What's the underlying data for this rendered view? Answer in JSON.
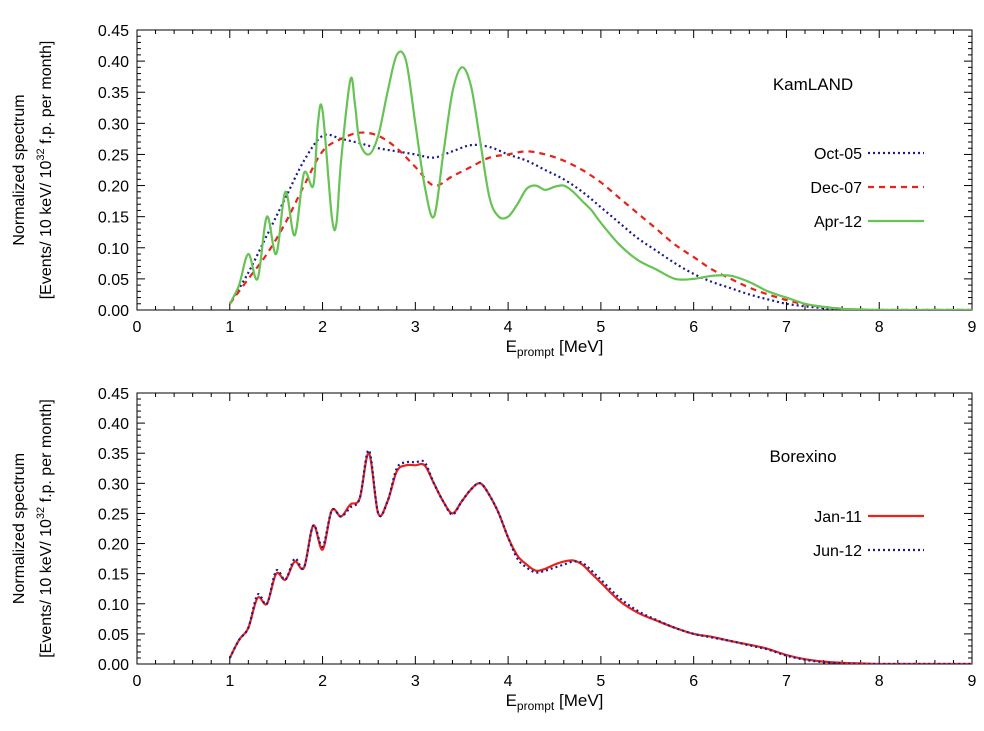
{
  "colors": {
    "navy": "#1a1a8c",
    "red": "#e8231b",
    "green": "#66c354",
    "axis": "#000000"
  },
  "chart_data": [
    {
      "type": "line",
      "annotation": "KamLAND",
      "xlabel_main": "E",
      "xlabel_sub": "prompt",
      "xlabel_unit": " [MeV]",
      "ylabel_line1": "Normalized spectrum",
      "ylabel_line2_pre": "[Events/ 10 keV/ 10",
      "ylabel_line2_sup": "32",
      "ylabel_line2_post": " f.p. per month]",
      "xlim": [
        0,
        9
      ],
      "ylim": [
        0,
        0.45
      ],
      "xticks": [
        "0",
        "1",
        "2",
        "3",
        "4",
        "5",
        "6",
        "7",
        "8",
        "9"
      ],
      "yticks": [
        "0.00",
        "0.05",
        "0.10",
        "0.15",
        "0.20",
        "0.25",
        "0.30",
        "0.35",
        "0.40",
        "0.45"
      ],
      "grid": false,
      "legend_position": "right",
      "series": [
        {
          "name": "Oct-05",
          "color": "#1a1a8c",
          "dash": "dotted",
          "x": [
            1.0,
            1.2,
            1.4,
            1.6,
            1.8,
            2.0,
            2.2,
            2.4,
            2.6,
            2.8,
            3.0,
            3.2,
            3.4,
            3.6,
            3.8,
            4.0,
            4.2,
            4.4,
            4.6,
            4.8,
            5.0,
            5.2,
            5.4,
            5.6,
            5.8,
            6.0,
            6.2,
            6.4,
            6.6,
            6.8,
            7.0,
            7.2,
            7.4,
            7.6,
            7.8,
            8.0,
            8.5,
            9.0
          ],
          "y": [
            0.01,
            0.06,
            0.12,
            0.18,
            0.24,
            0.28,
            0.275,
            0.268,
            0.26,
            0.255,
            0.25,
            0.245,
            0.255,
            0.265,
            0.262,
            0.25,
            0.24,
            0.225,
            0.21,
            0.19,
            0.165,
            0.14,
            0.115,
            0.095,
            0.075,
            0.058,
            0.045,
            0.035,
            0.025,
            0.017,
            0.01,
            0.006,
            0.003,
            0.001,
            0.0,
            0.0,
            0.0,
            0.0
          ]
        },
        {
          "name": "Dec-07",
          "color": "#e8231b",
          "dash": "dashed",
          "x": [
            1.0,
            1.2,
            1.4,
            1.6,
            1.8,
            2.0,
            2.2,
            2.4,
            2.6,
            2.8,
            3.0,
            3.2,
            3.4,
            3.6,
            3.8,
            4.0,
            4.2,
            4.4,
            4.6,
            4.8,
            5.0,
            5.2,
            5.4,
            5.6,
            5.8,
            6.0,
            6.2,
            6.4,
            6.6,
            6.8,
            7.0,
            7.2,
            7.4,
            7.6,
            7.8,
            8.0,
            8.5,
            9.0
          ],
          "y": [
            0.01,
            0.05,
            0.09,
            0.14,
            0.2,
            0.255,
            0.275,
            0.285,
            0.28,
            0.26,
            0.23,
            0.2,
            0.215,
            0.23,
            0.245,
            0.25,
            0.255,
            0.25,
            0.24,
            0.225,
            0.205,
            0.18,
            0.155,
            0.13,
            0.105,
            0.085,
            0.065,
            0.05,
            0.036,
            0.025,
            0.016,
            0.009,
            0.005,
            0.002,
            0.0,
            0.0,
            0.0,
            0.0
          ]
        },
        {
          "name": "Apr-12",
          "color": "#66c354",
          "dash": "solid",
          "x": [
            1.0,
            1.1,
            1.2,
            1.3,
            1.4,
            1.5,
            1.6,
            1.7,
            1.8,
            1.9,
            1.95,
            2.0,
            2.1,
            2.15,
            2.2,
            2.3,
            2.35,
            2.4,
            2.5,
            2.6,
            2.7,
            2.8,
            2.9,
            3.0,
            3.1,
            3.2,
            3.3,
            3.4,
            3.5,
            3.6,
            3.7,
            3.8,
            3.9,
            4.0,
            4.1,
            4.2,
            4.3,
            4.4,
            4.5,
            4.6,
            4.7,
            4.8,
            4.9,
            5.0,
            5.2,
            5.4,
            5.6,
            5.8,
            6.0,
            6.2,
            6.4,
            6.6,
            6.8,
            7.0,
            7.2,
            7.4,
            7.6,
            7.8,
            8.0,
            8.5,
            9.0
          ],
          "y": [
            0.01,
            0.04,
            0.09,
            0.05,
            0.15,
            0.09,
            0.19,
            0.12,
            0.22,
            0.2,
            0.3,
            0.32,
            0.15,
            0.14,
            0.24,
            0.37,
            0.33,
            0.27,
            0.25,
            0.28,
            0.35,
            0.41,
            0.4,
            0.3,
            0.2,
            0.15,
            0.25,
            0.35,
            0.39,
            0.36,
            0.27,
            0.18,
            0.15,
            0.15,
            0.17,
            0.195,
            0.2,
            0.193,
            0.198,
            0.2,
            0.19,
            0.175,
            0.16,
            0.14,
            0.105,
            0.08,
            0.065,
            0.05,
            0.05,
            0.055,
            0.055,
            0.045,
            0.03,
            0.02,
            0.01,
            0.005,
            0.002,
            0.001,
            0.0,
            0.0,
            0.0
          ]
        }
      ]
    },
    {
      "type": "line",
      "annotation": "Borexino",
      "xlabel_main": "E",
      "xlabel_sub": "prompt",
      "xlabel_unit": " [MeV]",
      "ylabel_line1": "Normalized spectrum",
      "ylabel_line2_pre": "[Events/ 10 keV/ 10",
      "ylabel_line2_sup": "32",
      "ylabel_line2_post": " f.p. per month]",
      "xlim": [
        0,
        9
      ],
      "ylim": [
        0,
        0.45
      ],
      "xticks": [
        "0",
        "1",
        "2",
        "3",
        "4",
        "5",
        "6",
        "7",
        "8",
        "9"
      ],
      "yticks": [
        "0.00",
        "0.05",
        "0.10",
        "0.15",
        "0.20",
        "0.25",
        "0.30",
        "0.35",
        "0.40",
        "0.45"
      ],
      "grid": false,
      "legend_position": "right",
      "series": [
        {
          "name": "Jan-11",
          "color": "#e8231b",
          "dash": "solid",
          "x": [
            1.0,
            1.1,
            1.2,
            1.3,
            1.4,
            1.5,
            1.6,
            1.7,
            1.8,
            1.9,
            2.0,
            2.1,
            2.2,
            2.3,
            2.4,
            2.5,
            2.6,
            2.7,
            2.8,
            2.9,
            3.0,
            3.1,
            3.2,
            3.3,
            3.4,
            3.5,
            3.6,
            3.7,
            3.8,
            3.9,
            4.0,
            4.1,
            4.2,
            4.3,
            4.4,
            4.5,
            4.6,
            4.7,
            4.8,
            4.9,
            5.0,
            5.2,
            5.4,
            5.6,
            5.8,
            6.0,
            6.2,
            6.4,
            6.6,
            6.8,
            7.0,
            7.2,
            7.4,
            7.6,
            7.8,
            8.0,
            8.5,
            9.0
          ],
          "y": [
            0.01,
            0.04,
            0.06,
            0.11,
            0.1,
            0.15,
            0.14,
            0.17,
            0.16,
            0.23,
            0.19,
            0.255,
            0.245,
            0.265,
            0.275,
            0.35,
            0.25,
            0.27,
            0.32,
            0.33,
            0.33,
            0.33,
            0.3,
            0.27,
            0.25,
            0.27,
            0.29,
            0.3,
            0.28,
            0.25,
            0.21,
            0.18,
            0.165,
            0.155,
            0.158,
            0.165,
            0.17,
            0.172,
            0.165,
            0.15,
            0.135,
            0.105,
            0.085,
            0.072,
            0.06,
            0.05,
            0.045,
            0.038,
            0.032,
            0.025,
            0.015,
            0.008,
            0.004,
            0.002,
            0.001,
            0.0,
            0.0,
            0.0
          ]
        },
        {
          "name": "Jun-12",
          "color": "#1a1a8c",
          "dash": "dotted",
          "x": [
            1.0,
            1.1,
            1.2,
            1.3,
            1.4,
            1.5,
            1.6,
            1.7,
            1.8,
            1.9,
            2.0,
            2.1,
            2.2,
            2.3,
            2.4,
            2.5,
            2.6,
            2.7,
            2.8,
            2.9,
            3.0,
            3.1,
            3.2,
            3.3,
            3.4,
            3.5,
            3.6,
            3.7,
            3.8,
            3.9,
            4.0,
            4.1,
            4.2,
            4.3,
            4.4,
            4.5,
            4.6,
            4.7,
            4.8,
            4.9,
            5.0,
            5.2,
            5.4,
            5.6,
            5.8,
            6.0,
            6.2,
            6.4,
            6.6,
            6.8,
            7.0,
            7.2,
            7.4,
            7.6,
            7.8,
            8.0,
            8.5,
            9.0
          ],
          "y": [
            0.01,
            0.04,
            0.06,
            0.115,
            0.1,
            0.155,
            0.14,
            0.175,
            0.16,
            0.23,
            0.195,
            0.255,
            0.245,
            0.26,
            0.275,
            0.355,
            0.25,
            0.27,
            0.325,
            0.335,
            0.335,
            0.335,
            0.3,
            0.27,
            0.248,
            0.27,
            0.29,
            0.3,
            0.28,
            0.25,
            0.21,
            0.175,
            0.16,
            0.152,
            0.155,
            0.16,
            0.165,
            0.17,
            0.168,
            0.155,
            0.14,
            0.11,
            0.088,
            0.073,
            0.06,
            0.05,
            0.044,
            0.038,
            0.031,
            0.024,
            0.014,
            0.007,
            0.003,
            0.001,
            0.0,
            0.0,
            0.0,
            0.0
          ]
        }
      ]
    }
  ]
}
